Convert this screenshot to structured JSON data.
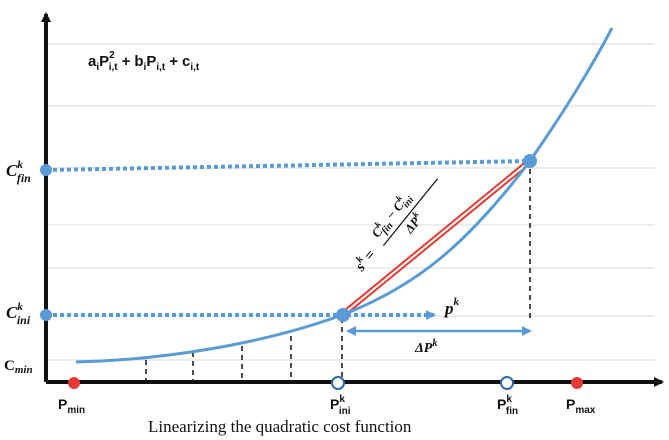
{
  "formula": {
    "a": "a",
    "i": "i",
    "P": "P",
    "sub_it": "i,t",
    "sup2": "2",
    "plus": "+",
    "b": "b",
    "c": "c"
  },
  "y_labels": {
    "c_fin": {
      "base": "C",
      "sup": "k",
      "sub": "fin"
    },
    "c_ini": {
      "base": "C",
      "sup": "k",
      "sub": "ini"
    },
    "c_min": {
      "base": "C",
      "sub": "min"
    }
  },
  "x_labels": {
    "p_min": {
      "base": "P",
      "sub": "min"
    },
    "p_ini": {
      "base": "P",
      "sup": "k",
      "sub": "ini"
    },
    "p_fin": {
      "base": "P",
      "sup": "k",
      "sub": "fin"
    },
    "p_max": {
      "base": "P",
      "sub": "max"
    }
  },
  "slope": {
    "s": "s",
    "k": "k",
    "eq": "=",
    "num_C1": "C",
    "num_fin": "fin",
    "minus": "−",
    "num_C2": "C",
    "num_ini": "ini",
    "den": "ΔP",
    "den_k": "k"
  },
  "p_k": {
    "base": "p",
    "sup": "k"
  },
  "delta_p": {
    "base": "ΔP",
    "sup": "k"
  },
  "caption": "Linearizing the quadratic cost function",
  "colors": {
    "curve": "#5b9bd5",
    "marker": "#5b9bd5",
    "secant": "#e03c31",
    "bound_marker": "#e53935",
    "axis": "#111111",
    "grid": "#d9d9d9"
  }
}
